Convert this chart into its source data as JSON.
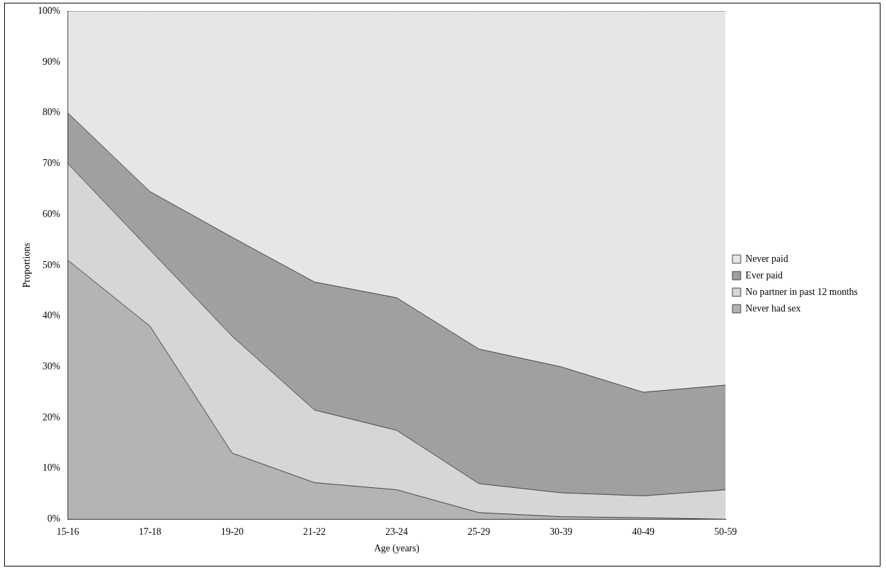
{
  "chart_data": {
    "type": "area",
    "stacked": true,
    "xlabel": "Age (years)",
    "ylabel": "Proportions",
    "categories": [
      "15-16",
      "17-18",
      "19-20",
      "21-22",
      "23-24",
      "25-29",
      "30-39",
      "40-49",
      "50-59"
    ],
    "series": [
      {
        "name": "Never had sex",
        "color": "#b4b4b4",
        "values": [
          51,
          38,
          13,
          7.2,
          5.8,
          1.3,
          0.5,
          0.3,
          0
        ]
      },
      {
        "name": "No partner in past 12 months",
        "color": "#d6d6d6",
        "values": [
          19,
          15,
          23,
          14.3,
          11.7,
          5.7,
          4.7,
          4.3,
          5.8
        ]
      },
      {
        "name": "Ever paid",
        "color": "#a0a0a0",
        "values": [
          10,
          11.5,
          19.5,
          25.2,
          26.1,
          26.5,
          24.8,
          20.4,
          20.6
        ]
      },
      {
        "name": "Never paid",
        "color": "#e6e6e6",
        "values": [
          20,
          35.5,
          44.5,
          53.3,
          56.4,
          66.5,
          70,
          75,
          73.6
        ]
      }
    ],
    "ylim": [
      0,
      100
    ],
    "yticks": [
      {
        "value": 0,
        "label": "0%"
      },
      {
        "value": 10,
        "label": "10%"
      },
      {
        "value": 20,
        "label": "20%"
      },
      {
        "value": 30,
        "label": "30%"
      },
      {
        "value": 40,
        "label": "40%"
      },
      {
        "value": 50,
        "label": "50%"
      },
      {
        "value": 60,
        "label": "60%"
      },
      {
        "value": 70,
        "label": "70%"
      },
      {
        "value": 80,
        "label": "80%"
      },
      {
        "value": 90,
        "label": "90%"
      },
      {
        "value": 100,
        "label": "100%"
      }
    ],
    "grid": false,
    "legend": "right"
  }
}
